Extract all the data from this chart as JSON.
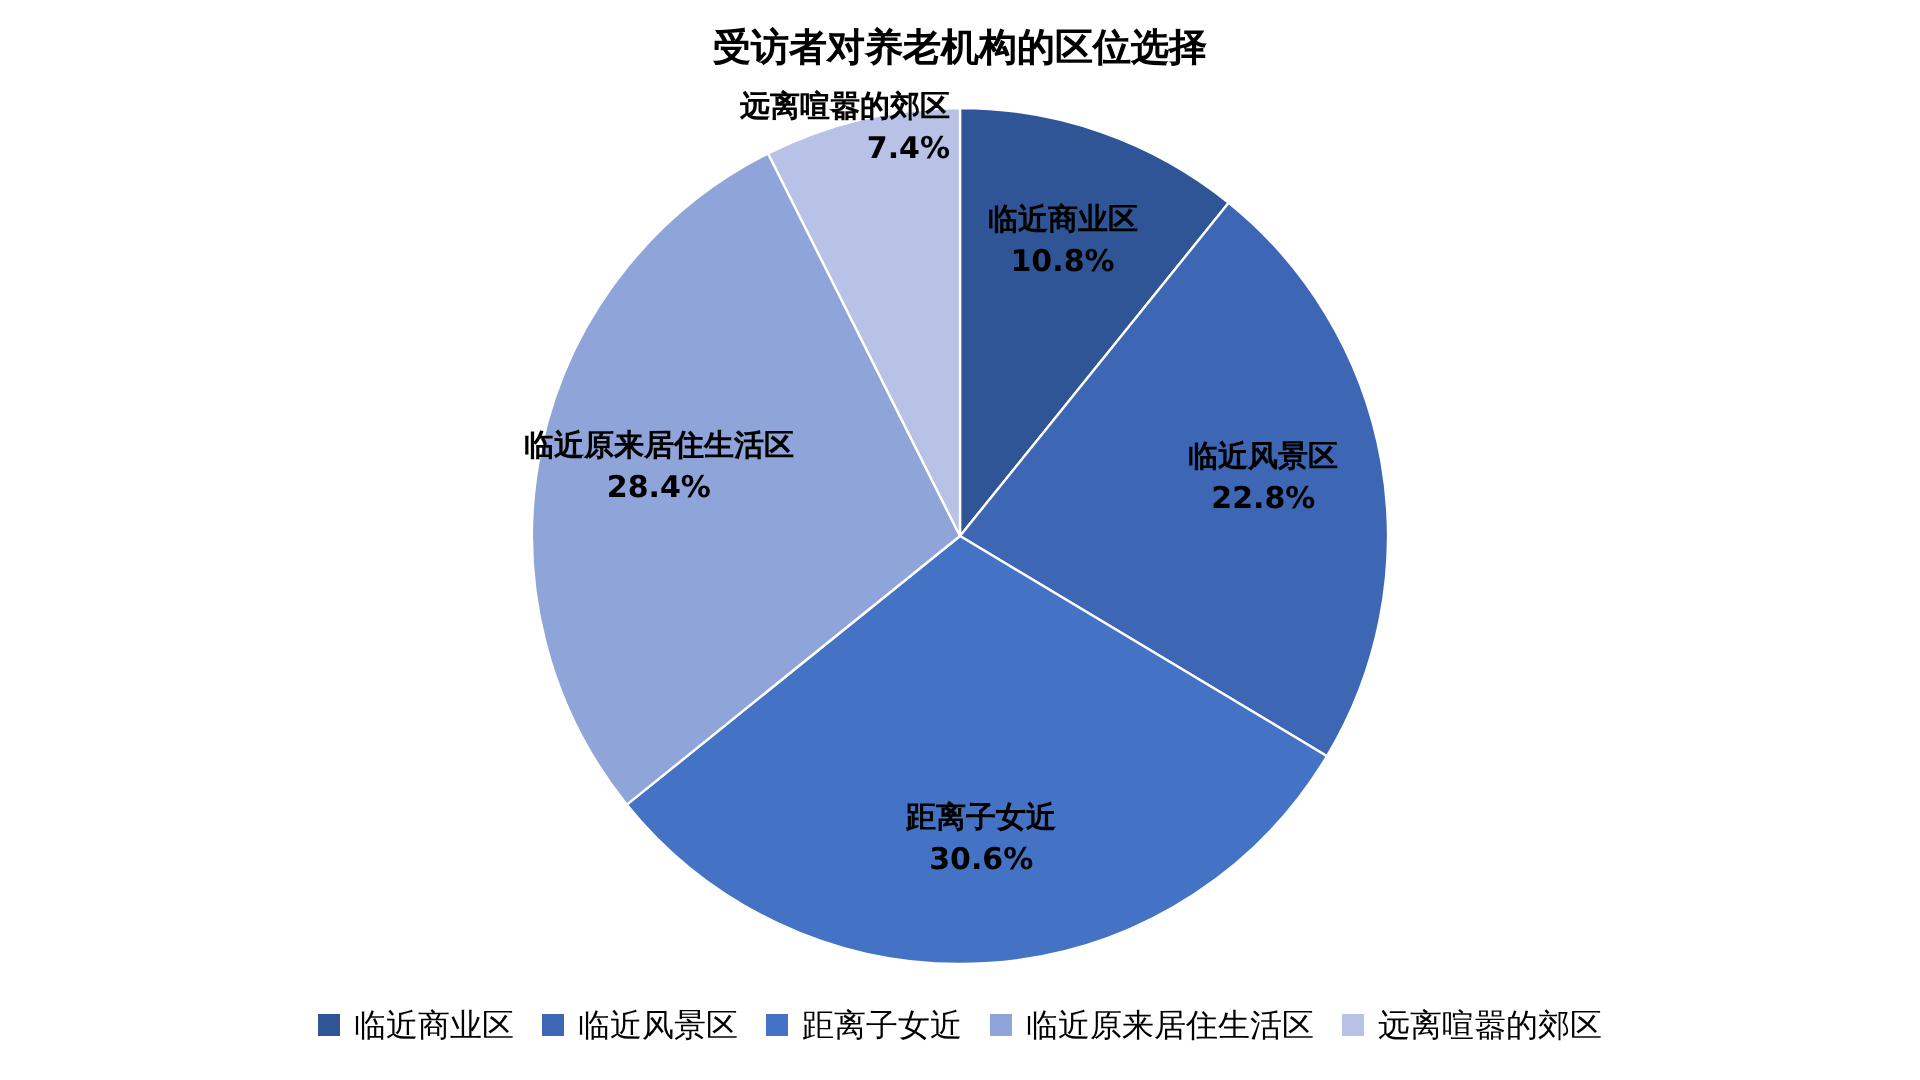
{
  "chart_data": {
    "type": "pie",
    "title": "受访者对养老机构的区位选择",
    "categories": [
      "临近商业区",
      "临近风景区",
      "距离子女近",
      "临近原来居住生活区",
      "远离喧嚣的郊区"
    ],
    "values": [
      10.8,
      22.8,
      30.6,
      28.4,
      7.4
    ],
    "colors": [
      "#2f5597",
      "#3d66b5",
      "#4472c4",
      "#8fa4d9",
      "#b8c2e6"
    ],
    "value_labels": [
      "10.8%",
      "22.8%",
      "30.6%",
      "28.4%",
      "7.4%"
    ],
    "legend": "bottom"
  }
}
